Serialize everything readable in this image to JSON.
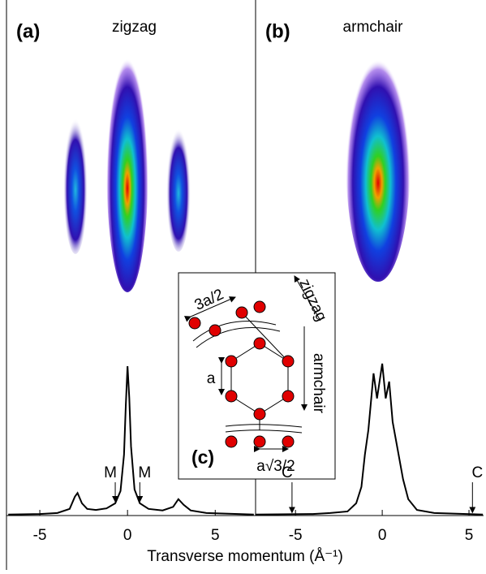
{
  "chart_data": [
    {
      "type": "line",
      "panel_label": "(a)",
      "title": "zigzag",
      "color": "#000000",
      "xlabel": "Transverse momentum (Å⁻¹)",
      "x": [
        -6.8,
        -5,
        -4,
        -3.3,
        -3.0,
        -2.85,
        -2.6,
        -2.3,
        -1.8,
        -1.2,
        -0.7,
        -0.4,
        -0.2,
        -0.1,
        0,
        0.1,
        0.2,
        0.4,
        0.7,
        1.2,
        2.0,
        2.6,
        2.9,
        3.2,
        3.6,
        4.5,
        7.2
      ],
      "values": [
        0.2,
        0.3,
        0.5,
        1.3,
        3.7,
        4.4,
        2.4,
        1.3,
        1.1,
        1.4,
        2.4,
        4.8,
        11.9,
        21.4,
        29.2,
        23.0,
        13.5,
        5.1,
        2.4,
        1.3,
        1.0,
        1.7,
        3.2,
        2.1,
        1.0,
        0.5,
        0.2
      ],
      "xlim": [
        -6.9,
        7.3
      ],
      "xticks": [
        -5,
        0,
        5
      ],
      "ylim": [
        0,
        100
      ],
      "annotations": [
        {
          "text": "M",
          "x": -0.7
        },
        {
          "text": "M",
          "x": 0.7
        }
      ]
    },
    {
      "type": "line",
      "panel_label": "(b)",
      "title": "armchair",
      "color": "#000000",
      "x": [
        -7.3,
        -4,
        -3,
        -2,
        -1.5,
        -1.2,
        -1,
        -0.8,
        -0.5,
        -0.3,
        0,
        0.2,
        0.4,
        0.6,
        0.9,
        1.2,
        1.5,
        2,
        3,
        5.8
      ],
      "values": [
        0.2,
        0.3,
        0.5,
        0.8,
        2.4,
        5.6,
        11.9,
        16.7,
        27.8,
        22.9,
        29.7,
        22.9,
        26.2,
        18.3,
        12.7,
        7.1,
        3.2,
        1.1,
        0.5,
        0.2
      ],
      "xlim": [
        -7.3,
        5.84
      ],
      "xticks": [
        -5,
        0,
        5
      ],
      "ylim": [
        0,
        100
      ],
      "annotations": [
        {
          "text": "C",
          "x": -5.2
        },
        {
          "text": "C",
          "x": 5.2
        }
      ]
    }
  ],
  "inset": {
    "label": "(c)",
    "spacing_label": "3a/2",
    "bond_label": "a",
    "row_label": "a√3/2",
    "direction_1": "zigzag",
    "direction_2": "armchair"
  }
}
